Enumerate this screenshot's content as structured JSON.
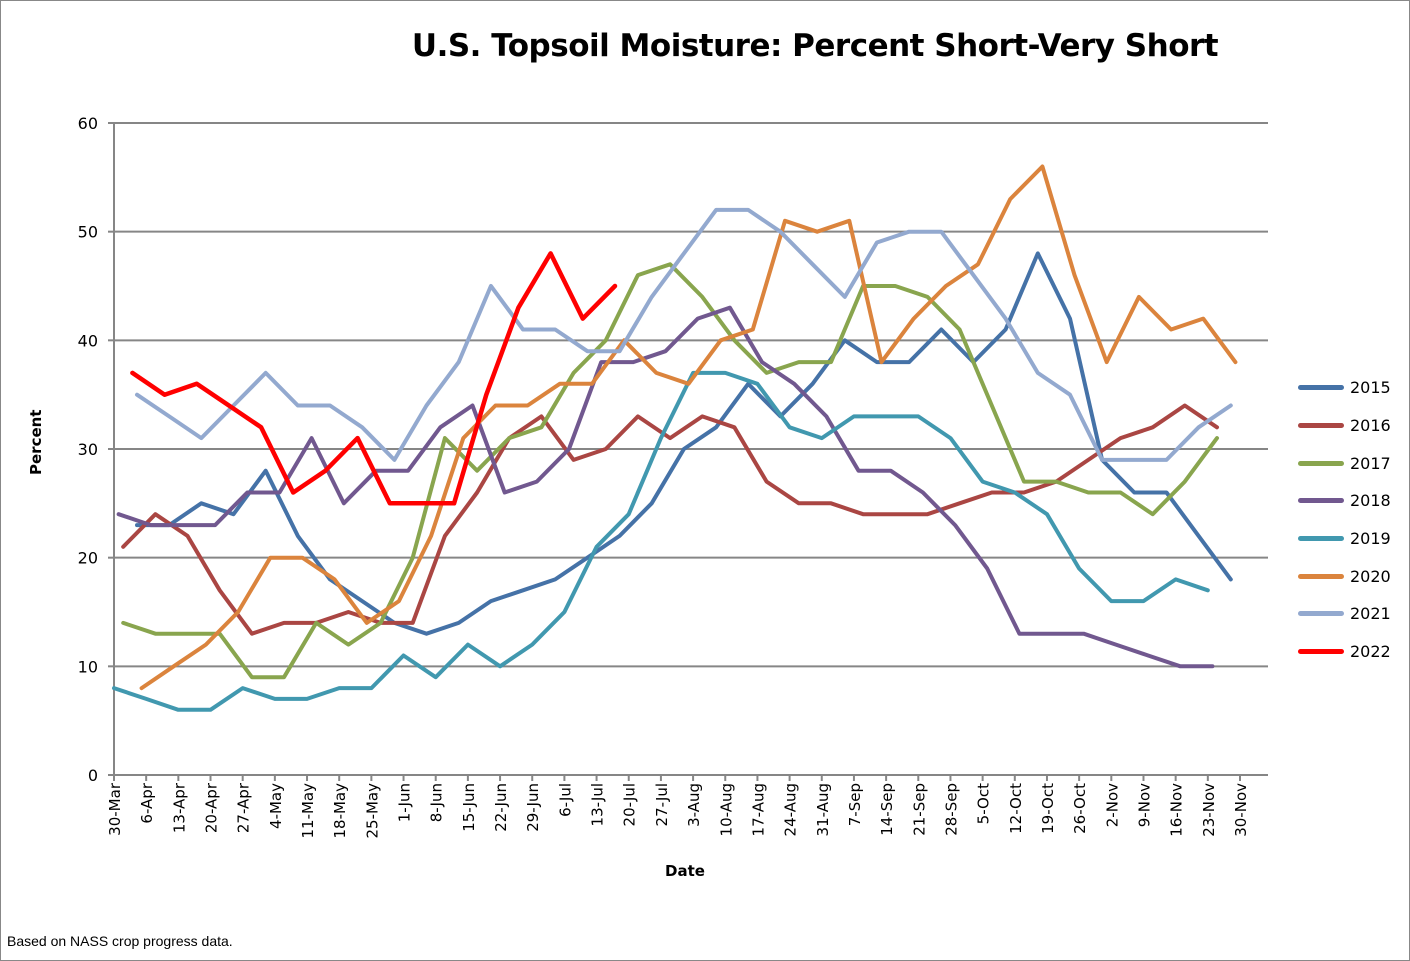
{
  "chart_data": {
    "type": "line",
    "title": "U.S. Topsoil Moisture: Percent Short-Very Short",
    "xlabel": "Date",
    "ylabel": "Percent",
    "ylim": [
      0,
      60
    ],
    "yticks": [
      0,
      10,
      20,
      30,
      40,
      50,
      60
    ],
    "grid": "horizontal",
    "legend_position": "right",
    "x_tick_labels": [
      "30-Mar",
      "6-Apr",
      "13-Apr",
      "20-Apr",
      "27-Apr",
      "4-May",
      "11-May",
      "18-May",
      "25-May",
      "1-Jun",
      "8-Jun",
      "15-Jun",
      "22-Jun",
      "29-Jun",
      "6-Jul",
      "13-Jul",
      "20-Jul",
      "27-Jul",
      "3-Aug",
      "10-Aug",
      "17-Aug",
      "24-Aug",
      "31-Aug",
      "7-Sep",
      "14-Sep",
      "21-Sep",
      "28-Sep",
      "5-Oct",
      "12-Oct",
      "19-Oct",
      "26-Oct",
      "2-Nov",
      "9-Nov",
      "16-Nov",
      "23-Nov",
      "30-Nov"
    ],
    "x_note": "x values are days after 30-Mar",
    "series": [
      {
        "name": "2015",
        "color": "#4572A7",
        "x_start_day": 5,
        "values": [
          23,
          23,
          25,
          24,
          28,
          22,
          18,
          16,
          14,
          13,
          14,
          16,
          17,
          18,
          20,
          22,
          25,
          30,
          32,
          36,
          33,
          36,
          40,
          38,
          38,
          41,
          38,
          41,
          48,
          42,
          29,
          26,
          26,
          22,
          18
        ]
      },
      {
        "name": "2016",
        "color": "#AA4643",
        "x_start_day": 2,
        "values": [
          21,
          24,
          22,
          17,
          13,
          14,
          14,
          15,
          14,
          14,
          22,
          26,
          31,
          33,
          29,
          30,
          33,
          31,
          33,
          32,
          27,
          25,
          25,
          24,
          24,
          24,
          25,
          26,
          26,
          27,
          29,
          31,
          32,
          34,
          32
        ]
      },
      {
        "name": "2017",
        "color": "#89A54E",
        "x_start_day": 2,
        "values": [
          14,
          13,
          13,
          13,
          9,
          9,
          14,
          12,
          14,
          20,
          31,
          28,
          31,
          32,
          37,
          40,
          46,
          47,
          44,
          40,
          37,
          38,
          38,
          45,
          45,
          44,
          41,
          34,
          27,
          27,
          26,
          26,
          24,
          27,
          31
        ]
      },
      {
        "name": "2018",
        "color": "#71588F",
        "x_start_day": 1,
        "values": [
          24,
          23,
          23,
          23,
          26,
          26,
          31,
          25,
          28,
          28,
          32,
          34,
          26,
          27,
          30,
          38,
          38,
          39,
          42,
          43,
          38,
          36,
          33,
          28,
          28,
          26,
          23,
          19,
          13,
          13,
          13,
          12,
          11,
          10,
          10
        ]
      },
      {
        "name": "2019",
        "color": "#4198AF",
        "x_start_day": 0,
        "values": [
          8,
          7,
          6,
          6,
          8,
          7,
          7,
          8,
          8,
          11,
          9,
          12,
          10,
          12,
          15,
          21,
          24,
          31,
          37,
          37,
          36,
          32,
          31,
          33,
          33,
          33,
          31,
          27,
          26,
          24,
          19,
          16,
          16,
          18,
          17
        ]
      },
      {
        "name": "2020",
        "color": "#DB843D",
        "x_start_day": 6,
        "values": [
          8,
          10,
          12,
          15,
          20,
          20,
          18,
          14,
          16,
          22,
          31,
          34,
          34,
          36,
          36,
          40,
          37,
          36,
          40,
          41,
          51,
          50,
          51,
          38,
          42,
          45,
          47,
          53,
          56,
          46,
          38,
          44,
          41,
          42,
          38
        ]
      },
      {
        "name": "2021",
        "color": "#93A9CF",
        "x_start_day": 5,
        "values": [
          35,
          33,
          31,
          34,
          37,
          34,
          34,
          32,
          29,
          34,
          38,
          45,
          41,
          41,
          39,
          39,
          44,
          48,
          52,
          52,
          50,
          47,
          44,
          49,
          50,
          50,
          46,
          42,
          37,
          35,
          29,
          29,
          29,
          32,
          34
        ]
      },
      {
        "name": "2022",
        "color": "#FF0000",
        "x_start_day": 4,
        "values": [
          37,
          35,
          36,
          34,
          32,
          26,
          28,
          31,
          25,
          25,
          25,
          35,
          43,
          48,
          42,
          45
        ]
      }
    ]
  },
  "footer": "Based on NASS crop progress data."
}
